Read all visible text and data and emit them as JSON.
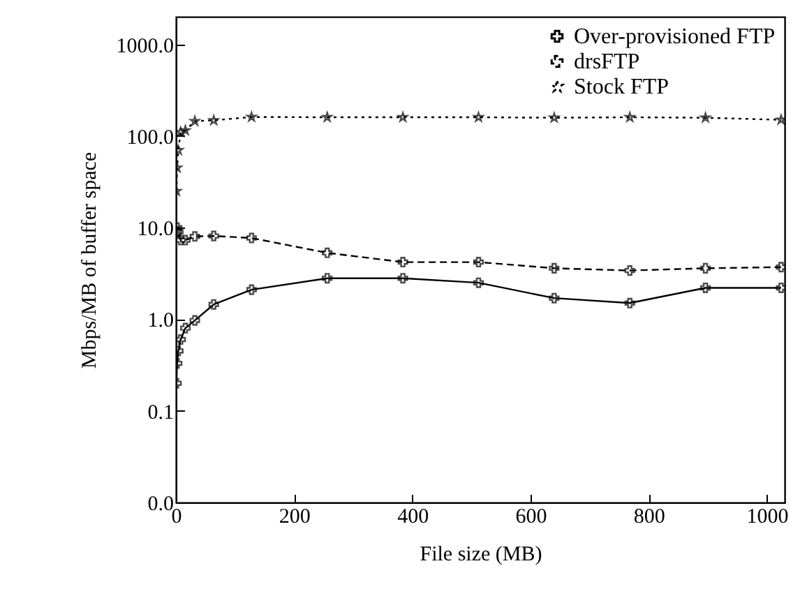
{
  "chart_data": {
    "type": "line",
    "xlabel": "File size (MB)",
    "ylabel": "Mbps/MB of buffer space",
    "xlim": [
      0,
      1030
    ],
    "xticks": [
      0,
      200,
      400,
      600,
      800,
      1000
    ],
    "ylim": [
      0.01,
      2000
    ],
    "yticks": [
      {
        "value": 0.01,
        "label": "0.0"
      },
      {
        "value": 0.1,
        "label": "0.1"
      },
      {
        "value": 1,
        "label": "1.0"
      },
      {
        "value": 10,
        "label": "10.0"
      },
      {
        "value": 100,
        "label": "100.0"
      },
      {
        "value": 1000,
        "label": "1000.0"
      }
    ],
    "log": "y",
    "grid": false,
    "legend": "top right",
    "x": [
      1,
      2,
      4,
      8,
      16,
      32,
      64,
      128,
      256,
      384,
      512,
      640,
      768,
      896,
      1024
    ],
    "series": [
      {
        "name": "Over-provisioned FTP",
        "color": "#000000",
        "line_style": "solid",
        "marker": "cross",
        "values": [
          0.2,
          0.33,
          0.45,
          0.6,
          0.8,
          0.97,
          1.45,
          2.1,
          2.8,
          2.8,
          2.5,
          1.7,
          1.5,
          2.2,
          2.2
        ]
      },
      {
        "name": "drsFTP",
        "color": "#000000",
        "line_style": "dashed",
        "marker": "cross",
        "values": [
          9,
          10,
          9,
          7.3,
          7.3,
          8,
          8.1,
          7.7,
          5.3,
          4.2,
          4.2,
          3.6,
          3.4,
          3.6,
          3.7
        ]
      },
      {
        "name": "Stock FTP",
        "color": "#000000",
        "line_style": "dotted",
        "marker": "star",
        "values": [
          25,
          45,
          70,
          110,
          115,
          145,
          148,
          161,
          160,
          160,
          160,
          158,
          160,
          158,
          150
        ]
      }
    ]
  }
}
